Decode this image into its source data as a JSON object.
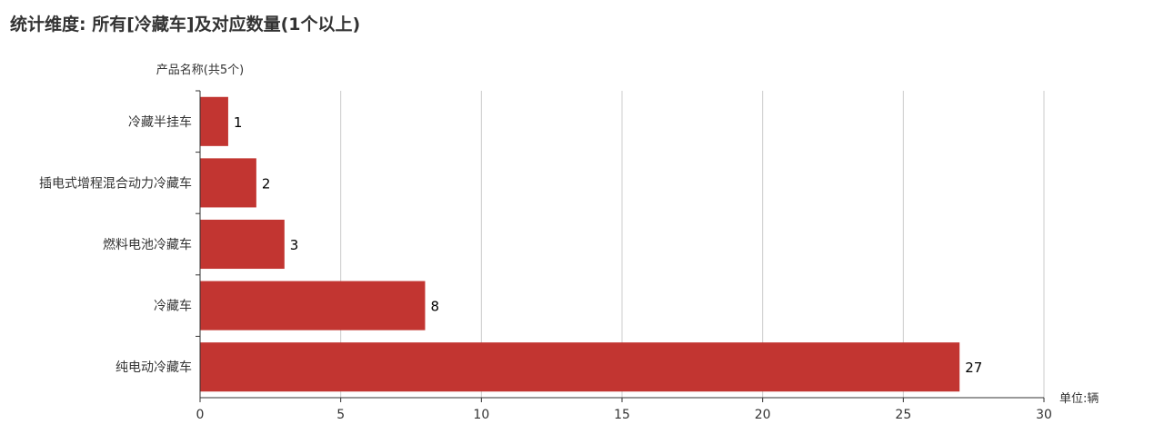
{
  "title": "统计维度: 所有[冷藏车]及对应数量(1个以上)",
  "chart_data": {
    "type": "bar",
    "orientation": "horizontal",
    "ylabel": "产品名称(共5个)",
    "xlabel": "单位:辆",
    "categories": [
      "冷藏半挂车",
      "插电式增程混合动力冷藏车",
      "燃料电池冷藏车",
      "冷藏车",
      "纯电动冷藏车"
    ],
    "values": [
      1,
      2,
      3,
      8,
      27
    ],
    "xlim": [
      0,
      30
    ],
    "xticks": [
      0,
      5,
      10,
      15,
      20,
      25,
      30
    ],
    "grid": true,
    "bar_color": "#c23531",
    "data_labels": true
  }
}
